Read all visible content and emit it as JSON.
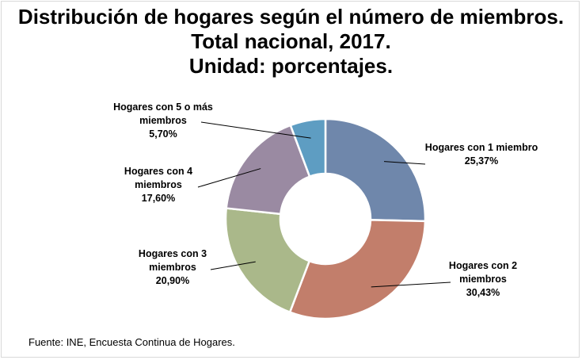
{
  "title_lines": [
    "Distribución de hogares según el número de miembros.",
    "Total nacional, 2017.",
    "Unidad: porcentajes."
  ],
  "source": "Fuente: INE, Encuesta Continua de Hogares.",
  "chart_data": {
    "type": "pie",
    "variant": "donut",
    "unit": "%",
    "slices": [
      {
        "label": "Hogares con 1 miembro",
        "value_text": "25,37%",
        "value": 25.37,
        "color": "#6f87ab"
      },
      {
        "label": "Hogares con 2 miembros",
        "value_text": "30,43%",
        "value": 30.43,
        "color": "#c27e6b"
      },
      {
        "label": "Hogares con 3 miembros",
        "value_text": "20,90%",
        "value": 20.9,
        "color": "#aab88a"
      },
      {
        "label": "Hogares con 4 miembros",
        "value_text": "17,60%",
        "value": 17.6,
        "color": "#9a8aa2"
      },
      {
        "label": "Hogares con 5 o más miembros",
        "value_text": "5,70%",
        "value": 5.7,
        "color": "#5e9dc2"
      }
    ]
  }
}
